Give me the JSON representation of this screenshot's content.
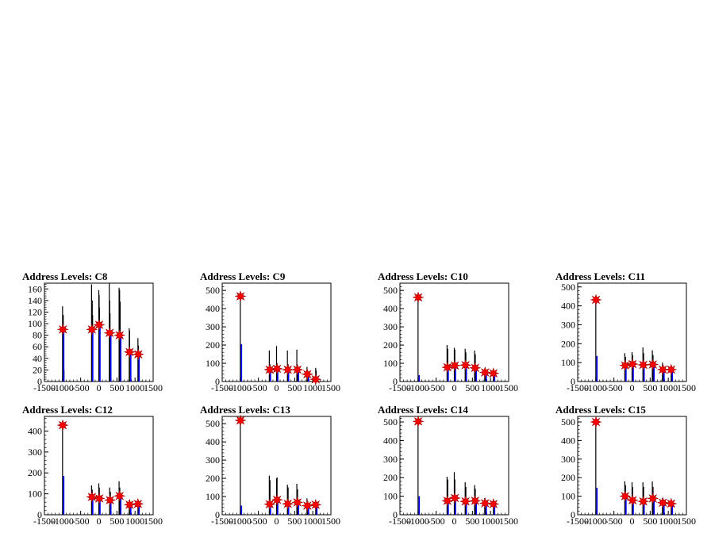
{
  "page": {
    "background": "#ffffff"
  },
  "chart_data": [
    {
      "type": "bar",
      "title": "Address Levels: C8",
      "xlim": [
        -1500,
        1500
      ],
      "ylim": [
        0,
        170
      ],
      "yticks": [
        0,
        20,
        40,
        60,
        80,
        100,
        120,
        140,
        160
      ],
      "xticklabels": [
        "-1500",
        "-1000",
        "-500",
        "0",
        "500",
        "1000",
        "1500"
      ],
      "hist": [
        [
          -1000,
          130
        ],
        [
          -980,
          115
        ],
        [
          -960,
          20
        ],
        [
          -200,
          168
        ],
        [
          -180,
          140
        ],
        [
          -170,
          115
        ],
        [
          0,
          158
        ],
        [
          10,
          150
        ],
        [
          20,
          128
        ],
        [
          290,
          170
        ],
        [
          300,
          140
        ],
        [
          310,
          118
        ],
        [
          560,
          162
        ],
        [
          575,
          158
        ],
        [
          590,
          138
        ],
        [
          840,
          92
        ],
        [
          850,
          88
        ],
        [
          1080,
          75
        ],
        [
          1095,
          62
        ]
      ],
      "hist_blue": [
        [
          -1000,
          90
        ],
        [
          -200,
          90
        ],
        [
          0,
          100
        ],
        [
          300,
          85
        ],
        [
          575,
          80
        ],
        [
          850,
          50
        ],
        [
          1080,
          47
        ]
      ],
      "markers": [
        [
          -990,
          90
        ],
        [
          -190,
          90
        ],
        [
          10,
          98
        ],
        [
          300,
          84
        ],
        [
          575,
          80
        ],
        [
          850,
          51
        ],
        [
          1090,
          47
        ]
      ]
    },
    {
      "type": "bar",
      "title": "Address Levels: C9",
      "xlim": [
        -1500,
        1500
      ],
      "ylim": [
        0,
        540
      ],
      "yticks": [
        0,
        100,
        200,
        300,
        400,
        500
      ],
      "xticklabels": [
        "-1500",
        "-1000",
        "-500",
        "0",
        "500",
        "1000",
        "1500"
      ],
      "hist": [
        [
          -1000,
          470
        ],
        [
          -200,
          170
        ],
        [
          -180,
          95
        ],
        [
          0,
          195
        ],
        [
          15,
          100
        ],
        [
          300,
          170
        ],
        [
          320,
          95
        ],
        [
          560,
          175
        ],
        [
          580,
          90
        ],
        [
          840,
          80
        ],
        [
          860,
          60
        ],
        [
          1080,
          75
        ],
        [
          1095,
          60
        ]
      ],
      "hist_blue": [
        [
          -1000,
          205
        ],
        [
          -200,
          60
        ],
        [
          0,
          60
        ],
        [
          300,
          60
        ],
        [
          575,
          60
        ],
        [
          850,
          40
        ],
        [
          1080,
          20
        ]
      ],
      "markers": [
        [
          -995,
          468
        ],
        [
          -190,
          65
        ],
        [
          15,
          70
        ],
        [
          310,
          65
        ],
        [
          575,
          65
        ],
        [
          850,
          40
        ],
        [
          1080,
          12
        ]
      ]
    },
    {
      "type": "bar",
      "title": "Address Levels: C10",
      "xlim": [
        -1500,
        1500
      ],
      "ylim": [
        0,
        540
      ],
      "yticks": [
        0,
        100,
        200,
        300,
        400,
        500
      ],
      "xticklabels": [
        "-1500",
        "-1000",
        "-500",
        "0",
        "500",
        "1000",
        "1500"
      ],
      "hist": [
        [
          -1000,
          465
        ],
        [
          -200,
          200
        ],
        [
          -180,
          180
        ],
        [
          0,
          185
        ],
        [
          15,
          175
        ],
        [
          300,
          180
        ],
        [
          320,
          160
        ],
        [
          560,
          170
        ],
        [
          580,
          150
        ],
        [
          840,
          70
        ],
        [
          860,
          60
        ],
        [
          1080,
          60
        ],
        [
          1095,
          55
        ]
      ],
      "hist_blue": [
        [
          -1000,
          35
        ],
        [
          -200,
          80
        ],
        [
          0,
          85
        ],
        [
          300,
          85
        ],
        [
          575,
          75
        ],
        [
          850,
          45
        ],
        [
          1080,
          45
        ]
      ],
      "markers": [
        [
          -995,
          462
        ],
        [
          -190,
          78
        ],
        [
          15,
          88
        ],
        [
          310,
          90
        ],
        [
          575,
          75
        ],
        [
          850,
          50
        ],
        [
          1080,
          45
        ]
      ]
    },
    {
      "type": "bar",
      "title": "Address Levels: C11",
      "xlim": [
        -1500,
        1500
      ],
      "ylim": [
        0,
        520
      ],
      "yticks": [
        0,
        100,
        200,
        300,
        400,
        500
      ],
      "xticklabels": [
        "-1500",
        "-1000",
        "-500",
        "0",
        "500",
        "1000",
        "1500"
      ],
      "hist": [
        [
          -1000,
          430
        ],
        [
          -200,
          150
        ],
        [
          -180,
          130
        ],
        [
          0,
          155
        ],
        [
          15,
          140
        ],
        [
          300,
          180
        ],
        [
          320,
          150
        ],
        [
          560,
          165
        ],
        [
          580,
          140
        ],
        [
          840,
          100
        ],
        [
          860,
          85
        ],
        [
          1080,
          80
        ],
        [
          1095,
          70
        ]
      ],
      "hist_blue": [
        [
          -1000,
          135
        ],
        [
          -200,
          85
        ],
        [
          0,
          90
        ],
        [
          300,
          85
        ],
        [
          575,
          80
        ],
        [
          850,
          60
        ],
        [
          1080,
          60
        ]
      ],
      "markers": [
        [
          -995,
          432
        ],
        [
          -190,
          85
        ],
        [
          15,
          92
        ],
        [
          310,
          88
        ],
        [
          575,
          90
        ],
        [
          850,
          63
        ],
        [
          1080,
          63
        ]
      ]
    },
    {
      "type": "bar",
      "title": "Address Levels: C12",
      "xlim": [
        -1500,
        1500
      ],
      "ylim": [
        0,
        470
      ],
      "yticks": [
        0,
        100,
        200,
        300,
        400
      ],
      "xticklabels": [
        "-1500",
        "-1000",
        "-500",
        "0",
        "500",
        "1000",
        "1500"
      ],
      "hist": [
        [
          -1000,
          430
        ],
        [
          -200,
          140
        ],
        [
          -180,
          120
        ],
        [
          0,
          150
        ],
        [
          15,
          130
        ],
        [
          300,
          130
        ],
        [
          320,
          110
        ],
        [
          560,
          160
        ],
        [
          580,
          130
        ],
        [
          840,
          70
        ],
        [
          860,
          60
        ],
        [
          1080,
          65
        ],
        [
          1095,
          55
        ]
      ],
      "hist_blue": [
        [
          -1000,
          185
        ],
        [
          -200,
          80
        ],
        [
          0,
          75
        ],
        [
          300,
          70
        ],
        [
          575,
          80
        ],
        [
          850,
          40
        ],
        [
          1080,
          50
        ]
      ],
      "markers": [
        [
          -995,
          428
        ],
        [
          -190,
          85
        ],
        [
          15,
          78
        ],
        [
          310,
          70
        ],
        [
          575,
          90
        ],
        [
          850,
          48
        ],
        [
          1080,
          52
        ]
      ]
    },
    {
      "type": "bar",
      "title": "Address Levels: C13",
      "xlim": [
        -1500,
        1500
      ],
      "ylim": [
        0,
        540
      ],
      "yticks": [
        0,
        100,
        200,
        300,
        400,
        500
      ],
      "xticklabels": [
        "-1500",
        "-1000",
        "-500",
        "0",
        "500",
        "1000",
        "1500"
      ],
      "hist": [
        [
          -1000,
          520
        ],
        [
          -200,
          215
        ],
        [
          -180,
          190
        ],
        [
          0,
          200
        ],
        [
          15,
          205
        ],
        [
          300,
          165
        ],
        [
          320,
          150
        ],
        [
          560,
          170
        ],
        [
          580,
          140
        ],
        [
          840,
          90
        ],
        [
          860,
          75
        ],
        [
          1080,
          65
        ],
        [
          1095,
          55
        ]
      ],
      "hist_blue": [
        [
          -1000,
          50
        ],
        [
          -200,
          55
        ],
        [
          0,
          80
        ],
        [
          300,
          60
        ],
        [
          575,
          70
        ],
        [
          850,
          45
        ],
        [
          1080,
          50
        ]
      ],
      "markers": [
        [
          -995,
          518
        ],
        [
          -190,
          58
        ],
        [
          15,
          82
        ],
        [
          310,
          60
        ],
        [
          575,
          68
        ],
        [
          850,
          50
        ],
        [
          1080,
          55
        ]
      ]
    },
    {
      "type": "bar",
      "title": "Address Levels: C14",
      "xlim": [
        -1500,
        1500
      ],
      "ylim": [
        0,
        530
      ],
      "yticks": [
        0,
        100,
        200,
        300,
        400,
        500
      ],
      "xticklabels": [
        "-1500",
        "-1000",
        "-500",
        "0",
        "500",
        "1000",
        "1500"
      ],
      "hist": [
        [
          -1000,
          505
        ],
        [
          -200,
          205
        ],
        [
          -180,
          190
        ],
        [
          0,
          230
        ],
        [
          15,
          190
        ],
        [
          300,
          175
        ],
        [
          320,
          150
        ],
        [
          560,
          160
        ],
        [
          580,
          140
        ],
        [
          840,
          90
        ],
        [
          860,
          75
        ],
        [
          1080,
          70
        ],
        [
          1095,
          60
        ]
      ],
      "hist_blue": [
        [
          -1000,
          100
        ],
        [
          -200,
          70
        ],
        [
          0,
          90
        ],
        [
          300,
          70
        ],
        [
          575,
          75
        ],
        [
          850,
          55
        ],
        [
          1080,
          55
        ]
      ],
      "markers": [
        [
          -995,
          503
        ],
        [
          -190,
          75
        ],
        [
          15,
          90
        ],
        [
          310,
          72
        ],
        [
          575,
          75
        ],
        [
          850,
          62
        ],
        [
          1080,
          58
        ]
      ]
    },
    {
      "type": "bar",
      "title": "Address Levels: C15",
      "xlim": [
        -1500,
        1500
      ],
      "ylim": [
        0,
        530
      ],
      "yticks": [
        0,
        100,
        200,
        300,
        400,
        500
      ],
      "xticklabels": [
        "-1500",
        "-1000",
        "-500",
        "0",
        "500",
        "1000",
        "1500"
      ],
      "hist": [
        [
          -1000,
          500
        ],
        [
          -200,
          180
        ],
        [
          -180,
          160
        ],
        [
          0,
          175
        ],
        [
          15,
          150
        ],
        [
          300,
          175
        ],
        [
          320,
          150
        ],
        [
          560,
          180
        ],
        [
          580,
          150
        ],
        [
          840,
          90
        ],
        [
          860,
          75
        ],
        [
          1080,
          70
        ],
        [
          1095,
          60
        ]
      ],
      "hist_blue": [
        [
          -1000,
          145
        ],
        [
          -200,
          95
        ],
        [
          0,
          75
        ],
        [
          300,
          70
        ],
        [
          575,
          85
        ],
        [
          850,
          60
        ],
        [
          1080,
          60
        ]
      ],
      "markers": [
        [
          -995,
          500
        ],
        [
          -190,
          100
        ],
        [
          15,
          78
        ],
        [
          310,
          72
        ],
        [
          575,
          88
        ],
        [
          850,
          65
        ],
        [
          1080,
          60
        ]
      ]
    }
  ],
  "style": {
    "hist_color": "#000000",
    "blue_color": "#0000ff",
    "marker_color": "#ff0000"
  }
}
